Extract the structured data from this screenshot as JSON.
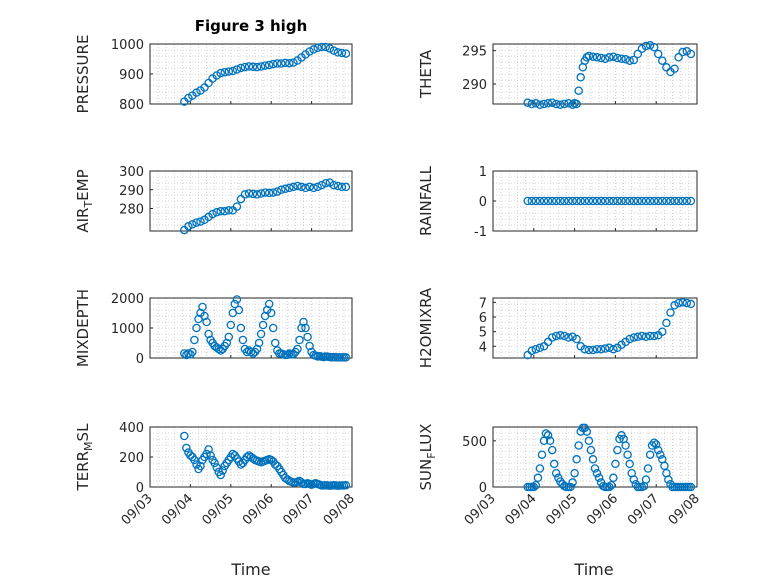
{
  "chart_data": {
    "type": "scatter",
    "title": "Figure 3 high",
    "xlabel": "Time",
    "x_tick_labels": [
      "09/03",
      "09/04",
      "09/05",
      "09/06",
      "09/07",
      "09/08"
    ],
    "marker_color": "#0072BD",
    "grid": true,
    "panels": [
      {
        "ylabel": "PRESSURE",
        "ylim": [
          800,
          1000
        ],
        "yticks": [
          800,
          900,
          1000
        ],
        "x": [
          3.85,
          3.95,
          4.05,
          4.15,
          4.25,
          4.35,
          4.45,
          4.55,
          4.65,
          4.75,
          4.85,
          4.95,
          5.05,
          5.15,
          5.25,
          5.35,
          5.45,
          5.55,
          5.65,
          5.75,
          5.85,
          5.95,
          6.05,
          6.15,
          6.25,
          6.35,
          6.45,
          6.55,
          6.65,
          6.75,
          6.85,
          6.95,
          7.05,
          7.15,
          7.25,
          7.35,
          7.45,
          7.55,
          7.65,
          7.75,
          7.85
        ],
        "y": [
          808,
          820,
          828,
          838,
          845,
          855,
          870,
          885,
          895,
          903,
          906,
          908,
          910,
          915,
          920,
          923,
          925,
          924,
          923,
          925,
          928,
          930,
          933,
          935,
          935,
          937,
          936,
          938,
          945,
          955,
          965,
          975,
          982,
          987,
          990,
          990,
          985,
          978,
          972,
          970,
          968
        ]
      },
      {
        "ylabel": "THETA",
        "ylim": [
          287,
          296
        ],
        "yticks": [
          290,
          295
        ],
        "x": [
          3.85,
          3.95,
          4.05,
          4.15,
          4.25,
          4.35,
          4.45,
          4.55,
          4.65,
          4.75,
          4.85,
          4.95,
          5.0,
          5.05,
          5.1,
          5.15,
          5.2,
          5.25,
          5.3,
          5.35,
          5.45,
          5.55,
          5.65,
          5.75,
          5.85,
          5.95,
          6.05,
          6.15,
          6.25,
          6.35,
          6.45,
          6.55,
          6.65,
          6.75,
          6.85,
          6.95,
          7.05,
          7.15,
          7.25,
          7.35,
          7.45,
          7.55,
          7.65,
          7.75,
          7.85
        ],
        "y": [
          287.2,
          287.0,
          287.1,
          286.9,
          287.0,
          287.1,
          287.2,
          287.0,
          286.9,
          287.0,
          287.1,
          286.9,
          287.1,
          287.0,
          289.0,
          291.0,
          292.5,
          293.5,
          294.0,
          294.2,
          294.1,
          294.0,
          293.9,
          293.8,
          294.0,
          294.1,
          293.9,
          293.8,
          293.7,
          293.5,
          293.6,
          294.5,
          295.3,
          295.7,
          295.8,
          295.5,
          294.5,
          293.5,
          292.5,
          291.8,
          292.3,
          294.0,
          294.8,
          294.9,
          294.5
        ]
      },
      {
        "ylabel": "AIR_T_EMP",
        "ylim": [
          268,
          300
        ],
        "yticks": [
          280,
          290,
          300
        ],
        "x": [
          3.85,
          3.95,
          4.05,
          4.15,
          4.25,
          4.35,
          4.45,
          4.55,
          4.65,
          4.75,
          4.85,
          4.95,
          5.05,
          5.15,
          5.25,
          5.35,
          5.45,
          5.55,
          5.65,
          5.75,
          5.85,
          5.95,
          6.05,
          6.15,
          6.25,
          6.35,
          6.45,
          6.55,
          6.65,
          6.75,
          6.85,
          6.95,
          7.05,
          7.15,
          7.25,
          7.35,
          7.45,
          7.55,
          7.65,
          7.75,
          7.85
        ],
        "y": [
          268.5,
          270.5,
          271.5,
          272.5,
          273.0,
          274.0,
          275.5,
          277.0,
          278.0,
          278.5,
          278.5,
          279.0,
          279.0,
          281.0,
          285.0,
          287.5,
          288.0,
          287.8,
          287.5,
          288.0,
          288.5,
          288.3,
          288.5,
          289.0,
          290.0,
          290.5,
          291.0,
          291.5,
          292.0,
          291.5,
          291.0,
          291.5,
          291.0,
          291.5,
          292.5,
          293.5,
          293.8,
          292.5,
          292.0,
          291.5,
          291.5
        ]
      },
      {
        "ylabel": "RAINFALL",
        "ylim": [
          -1,
          1
        ],
        "yticks": [
          -1,
          0,
          1
        ],
        "x": [
          3.85,
          3.95,
          4.05,
          4.15,
          4.25,
          4.35,
          4.45,
          4.55,
          4.65,
          4.75,
          4.85,
          4.95,
          5.05,
          5.15,
          5.25,
          5.35,
          5.45,
          5.55,
          5.65,
          5.75,
          5.85,
          5.95,
          6.05,
          6.15,
          6.25,
          6.35,
          6.45,
          6.55,
          6.65,
          6.75,
          6.85,
          6.95,
          7.05,
          7.15,
          7.25,
          7.35,
          7.45,
          7.55,
          7.65,
          7.75,
          7.85
        ],
        "y": [
          0,
          0,
          0,
          0,
          0,
          0,
          0,
          0,
          0,
          0,
          0,
          0,
          0,
          0,
          0,
          0,
          0,
          0,
          0,
          0,
          0,
          0,
          0,
          0,
          0,
          0,
          0,
          0,
          0,
          0,
          0,
          0,
          0,
          0,
          0,
          0,
          0,
          0,
          0,
          0,
          0
        ]
      },
      {
        "ylabel": "MIXDEPTH",
        "ylim": [
          0,
          2000
        ],
        "yticks": [
          0,
          1000,
          2000
        ],
        "x": [
          3.85,
          3.9,
          3.95,
          4.0,
          4.05,
          4.1,
          4.15,
          4.2,
          4.25,
          4.3,
          4.35,
          4.4,
          4.45,
          4.5,
          4.55,
          4.6,
          4.65,
          4.7,
          4.75,
          4.8,
          4.85,
          4.9,
          4.95,
          5.0,
          5.05,
          5.1,
          5.15,
          5.2,
          5.25,
          5.3,
          5.35,
          5.4,
          5.45,
          5.5,
          5.55,
          5.6,
          5.65,
          5.7,
          5.75,
          5.8,
          5.85,
          5.9,
          5.95,
          6.0,
          6.05,
          6.1,
          6.15,
          6.2,
          6.25,
          6.3,
          6.35,
          6.4,
          6.45,
          6.5,
          6.55,
          6.6,
          6.65,
          6.7,
          6.75,
          6.8,
          6.85,
          6.9,
          6.95,
          7.0,
          7.05,
          7.1,
          7.15,
          7.2,
          7.25,
          7.3,
          7.35,
          7.4,
          7.45,
          7.5,
          7.55,
          7.6,
          7.65,
          7.7,
          7.75,
          7.8,
          7.85
        ],
        "y": [
          150,
          100,
          150,
          120,
          200,
          600,
          1000,
          1300,
          1500,
          1700,
          1400,
          1200,
          800,
          600,
          500,
          400,
          350,
          300,
          250,
          300,
          400,
          500,
          700,
          1100,
          1500,
          1800,
          1950,
          1600,
          1000,
          600,
          300,
          200,
          250,
          200,
          150,
          200,
          300,
          500,
          800,
          1100,
          1400,
          1600,
          1800,
          1500,
          1000,
          500,
          250,
          150,
          150,
          120,
          100,
          110,
          150,
          120,
          130,
          200,
          300,
          600,
          1000,
          1200,
          1000,
          700,
          400,
          200,
          100,
          80,
          50,
          60,
          40,
          30,
          50,
          40,
          30,
          20,
          30,
          20,
          20,
          20,
          20,
          20,
          20
        ]
      },
      {
        "ylabel": "H2OMIXRA",
        "ylim": [
          3.2,
          7.3
        ],
        "yticks": [
          4,
          5,
          6,
          7
        ],
        "x": [
          3.85,
          3.95,
          4.05,
          4.15,
          4.25,
          4.35,
          4.45,
          4.55,
          4.65,
          4.75,
          4.85,
          4.95,
          5.05,
          5.15,
          5.25,
          5.35,
          5.45,
          5.55,
          5.65,
          5.75,
          5.85,
          5.95,
          6.05,
          6.15,
          6.25,
          6.35,
          6.45,
          6.55,
          6.65,
          6.75,
          6.85,
          6.95,
          7.05,
          7.15,
          7.25,
          7.35,
          7.45,
          7.55,
          7.65,
          7.75,
          7.85
        ],
        "y": [
          3.4,
          3.7,
          3.8,
          3.9,
          4.0,
          4.3,
          4.6,
          4.7,
          4.75,
          4.7,
          4.6,
          4.65,
          4.5,
          4.0,
          3.8,
          3.75,
          3.75,
          3.8,
          3.8,
          3.85,
          3.9,
          3.8,
          3.9,
          4.1,
          4.3,
          4.5,
          4.6,
          4.65,
          4.7,
          4.65,
          4.7,
          4.7,
          4.75,
          5.0,
          5.6,
          6.3,
          6.8,
          6.95,
          7.0,
          6.95,
          6.9
        ]
      },
      {
        "ylabel": "TERR_M_SL",
        "ylim": [
          0,
          400
        ],
        "yticks": [
          0,
          200,
          400
        ],
        "x": [
          3.85,
          3.9,
          3.95,
          4.0,
          4.05,
          4.1,
          4.15,
          4.2,
          4.25,
          4.3,
          4.35,
          4.4,
          4.45,
          4.5,
          4.55,
          4.6,
          4.65,
          4.7,
          4.75,
          4.8,
          4.85,
          4.9,
          4.95,
          5.0,
          5.05,
          5.1,
          5.15,
          5.2,
          5.25,
          5.3,
          5.35,
          5.4,
          5.45,
          5.5,
          5.55,
          5.6,
          5.65,
          5.7,
          5.75,
          5.8,
          5.85,
          5.9,
          5.95,
          6.0,
          6.05,
          6.1,
          6.15,
          6.2,
          6.25,
          6.3,
          6.35,
          6.4,
          6.45,
          6.5,
          6.55,
          6.6,
          6.65,
          6.7,
          6.75,
          6.8,
          6.85,
          6.9,
          6.95,
          7.0,
          7.05,
          7.1,
          7.15,
          7.2,
          7.25,
          7.3,
          7.35,
          7.4,
          7.45,
          7.5,
          7.55,
          7.6,
          7.65,
          7.7,
          7.75,
          7.8,
          7.85
        ],
        "y": [
          340,
          260,
          230,
          210,
          200,
          180,
          150,
          120,
          140,
          180,
          200,
          220,
          250,
          210,
          180,
          160,
          130,
          100,
          80,
          110,
          140,
          160,
          180,
          200,
          220,
          210,
          190,
          170,
          150,
          160,
          180,
          200,
          210,
          200,
          190,
          180,
          175,
          170,
          165,
          170,
          175,
          180,
          185,
          180,
          170,
          150,
          140,
          120,
          100,
          80,
          60,
          50,
          40,
          35,
          30,
          30,
          35,
          40,
          30,
          20,
          20,
          25,
          20,
          15,
          20,
          25,
          20,
          15,
          10,
          10,
          12,
          10,
          8,
          10,
          12,
          10,
          8,
          10,
          10,
          10,
          12
        ]
      },
      {
        "ylabel": "SUN_F_LUX",
        "ylim": [
          0,
          650
        ],
        "yticks": [
          0,
          500
        ],
        "x": [
          3.85,
          3.9,
          3.95,
          4.0,
          4.05,
          4.1,
          4.15,
          4.2,
          4.25,
          4.3,
          4.35,
          4.4,
          4.45,
          4.5,
          4.55,
          4.6,
          4.65,
          4.7,
          4.75,
          4.8,
          4.85,
          4.9,
          4.95,
          5.0,
          5.05,
          5.1,
          5.15,
          5.2,
          5.25,
          5.3,
          5.35,
          5.4,
          5.45,
          5.5,
          5.55,
          5.6,
          5.65,
          5.7,
          5.75,
          5.8,
          5.85,
          5.9,
          5.95,
          6.0,
          6.05,
          6.1,
          6.15,
          6.2,
          6.25,
          6.3,
          6.35,
          6.4,
          6.45,
          6.5,
          6.55,
          6.6,
          6.65,
          6.7,
          6.75,
          6.8,
          6.85,
          6.9,
          6.95,
          7.0,
          7.05,
          7.1,
          7.15,
          7.2,
          7.25,
          7.3,
          7.35,
          7.4,
          7.45,
          7.5,
          7.55,
          7.6,
          7.65,
          7.7,
          7.75,
          7.8,
          7.85
        ],
        "y": [
          0,
          0,
          0,
          0,
          20,
          100,
          200,
          350,
          500,
          580,
          560,
          500,
          400,
          250,
          150,
          100,
          60,
          30,
          10,
          0,
          0,
          0,
          50,
          150,
          300,
          450,
          600,
          640,
          640,
          600,
          500,
          400,
          300,
          200,
          150,
          100,
          50,
          10,
          0,
          0,
          0,
          20,
          100,
          250,
          400,
          520,
          560,
          520,
          450,
          350,
          250,
          150,
          80,
          30,
          0,
          0,
          0,
          10,
          80,
          200,
          350,
          450,
          480,
          460,
          400,
          350,
          300,
          230,
          150,
          80,
          30,
          0,
          0,
          0,
          0,
          0,
          0,
          0,
          0,
          0,
          0
        ]
      }
    ]
  }
}
